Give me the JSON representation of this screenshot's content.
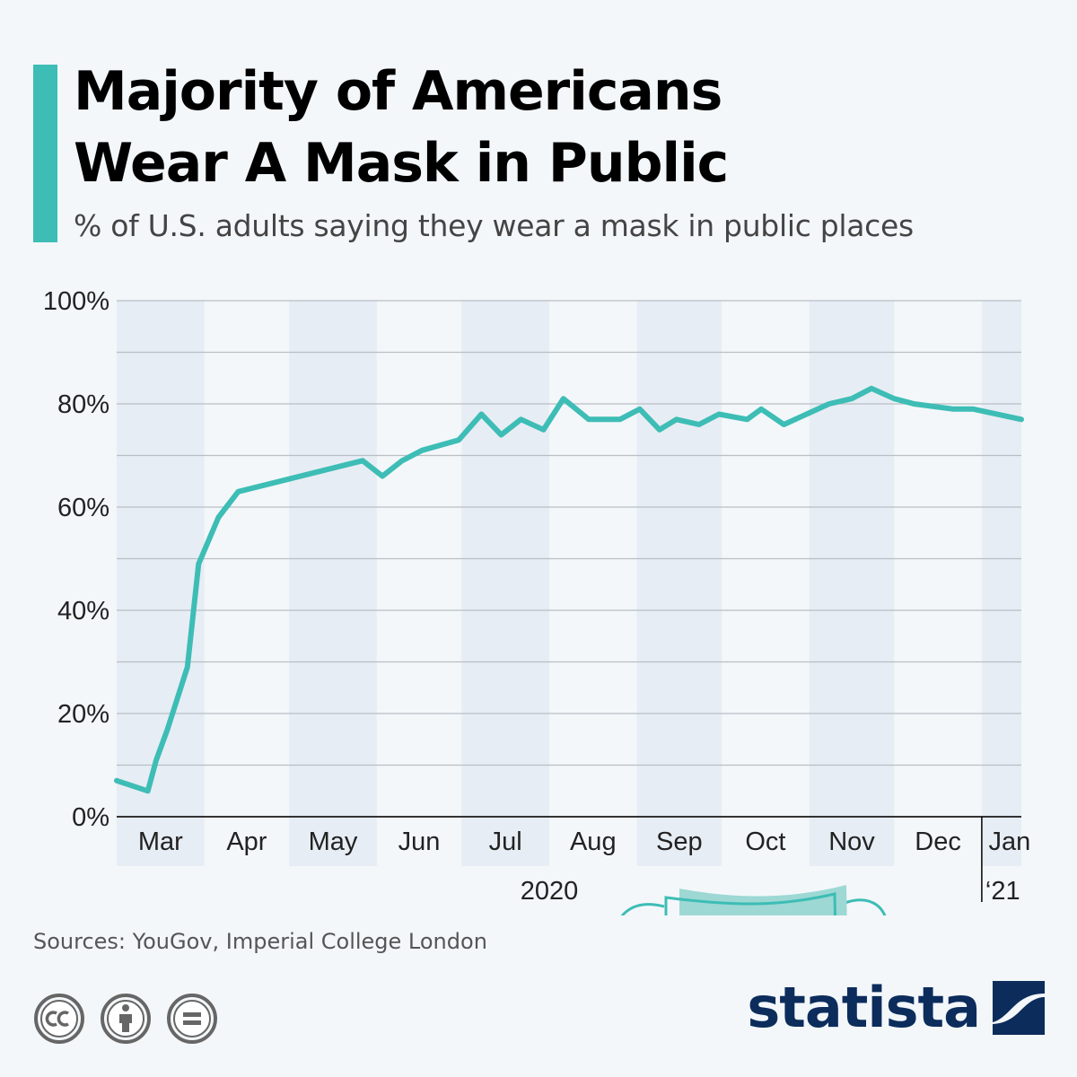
{
  "header": {
    "title_line1": "Majority of Americans",
    "title_line2": "Wear A Mask in Public",
    "subtitle": "% of U.S. adults saying they wear a mask in public places"
  },
  "colors": {
    "accent": "#3dbdb5",
    "line": "#3dbdb5",
    "band": "#e7edf4",
    "grid": "#b9bec4",
    "brand": "#0c2c5c"
  },
  "chart_data": {
    "type": "line",
    "ylim": [
      0,
      100
    ],
    "y_ticks": [
      {
        "value": 0,
        "label": "0%"
      },
      {
        "value": 20,
        "label": "20%"
      },
      {
        "value": 40,
        "label": "40%"
      },
      {
        "value": 60,
        "label": "60%"
      },
      {
        "value": 80,
        "label": "80%"
      },
      {
        "value": 100,
        "label": "100%"
      }
    ],
    "x_start": "2020-03-01",
    "x_end": "2021-01-15",
    "months": [
      {
        "label": "Mar",
        "start": "2020-03-01",
        "shaded": true
      },
      {
        "label": "Apr",
        "start": "2020-04-01",
        "shaded": false
      },
      {
        "label": "May",
        "start": "2020-05-01",
        "shaded": true
      },
      {
        "label": "Jun",
        "start": "2020-06-01",
        "shaded": false
      },
      {
        "label": "Jul",
        "start": "2020-07-01",
        "shaded": true
      },
      {
        "label": "Aug",
        "start": "2020-08-01",
        "shaded": false
      },
      {
        "label": "Sep",
        "start": "2020-09-01",
        "shaded": true
      },
      {
        "label": "Oct",
        "start": "2020-10-01",
        "shaded": false
      },
      {
        "label": "Nov",
        "start": "2020-11-01",
        "shaded": true
      },
      {
        "label": "Dec",
        "start": "2020-12-01",
        "shaded": false
      },
      {
        "label": "Jan",
        "start": "2021-01-01",
        "shaded": true
      }
    ],
    "year_label": "2020",
    "year_label_2": "‘21",
    "series": [
      {
        "points": [
          [
            "2020-03-01",
            7
          ],
          [
            "2020-03-12",
            5
          ],
          [
            "2020-03-15",
            11
          ],
          [
            "2020-03-19",
            17
          ],
          [
            "2020-03-26",
            29
          ],
          [
            "2020-03-30",
            49
          ],
          [
            "2020-04-06",
            58
          ],
          [
            "2020-04-13",
            63
          ],
          [
            "2020-05-27",
            69
          ],
          [
            "2020-06-03",
            66
          ],
          [
            "2020-06-10",
            69
          ],
          [
            "2020-06-17",
            71
          ],
          [
            "2020-06-30",
            73
          ],
          [
            "2020-07-08",
            78
          ],
          [
            "2020-07-15",
            74
          ],
          [
            "2020-07-22",
            77
          ],
          [
            "2020-07-30",
            75
          ],
          [
            "2020-08-06",
            81
          ],
          [
            "2020-08-15",
            77
          ],
          [
            "2020-08-26",
            77
          ],
          [
            "2020-09-02",
            79
          ],
          [
            "2020-09-09",
            75
          ],
          [
            "2020-09-15",
            77
          ],
          [
            "2020-09-23",
            76
          ],
          [
            "2020-09-30",
            78
          ],
          [
            "2020-10-10",
            77
          ],
          [
            "2020-10-15",
            79
          ],
          [
            "2020-10-23",
            76
          ],
          [
            "2020-10-31",
            78
          ],
          [
            "2020-11-08",
            80
          ],
          [
            "2020-11-16",
            81
          ],
          [
            "2020-11-23",
            83
          ],
          [
            "2020-12-01",
            81
          ],
          [
            "2020-12-08",
            80
          ],
          [
            "2020-12-22",
            79
          ],
          [
            "2020-12-29",
            79
          ],
          [
            "2021-01-15",
            77
          ]
        ]
      }
    ]
  },
  "footer": {
    "sources": "Sources: YouGov, Imperial College London",
    "license_icons": [
      "cc-icon",
      "attribution-icon",
      "no-derivatives-icon"
    ],
    "brand": "statista",
    "brand_icon": "statista-logo-icon"
  }
}
